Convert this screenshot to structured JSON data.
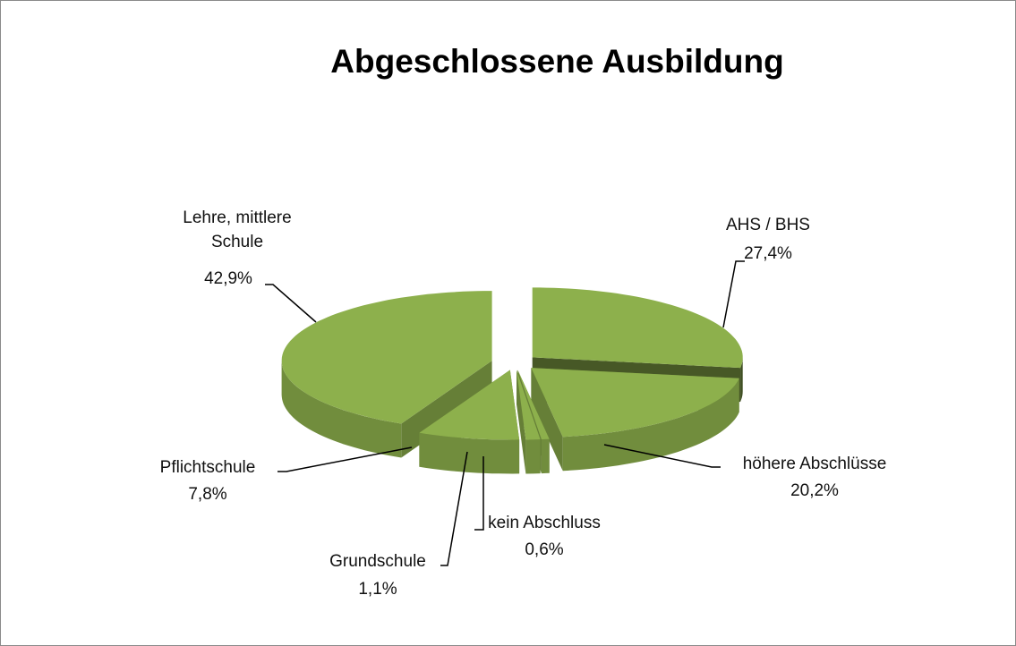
{
  "chart_data": {
    "type": "pie3d",
    "title": "Abgeschlossene Ausbildung",
    "categories": [
      "AHS / BHS",
      "höhere Abschlüsse",
      "kein Abschluss",
      "Grundschule",
      "Pflichtschule",
      "Lehre, mittlere Schule"
    ],
    "values": [
      27.4,
      20.2,
      0.6,
      1.1,
      7.8,
      42.9
    ],
    "value_labels": [
      "27,4%",
      "20,2%",
      "0,6%",
      "1,1%",
      "7,8%",
      "42,9%"
    ],
    "color": "#8db04c"
  }
}
